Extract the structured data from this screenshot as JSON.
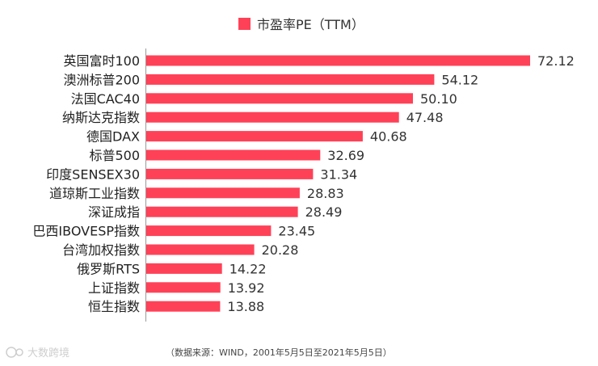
{
  "chart_data": {
    "type": "bar",
    "orientation": "horizontal",
    "legend": {
      "label": "市盈率PE（TTM）",
      "placement": "top-center"
    },
    "categories": [
      "英国富时100",
      "澳洲标普200",
      "法国CAC40",
      "纳斯达克指数",
      "德国DAX",
      "标普500",
      "印度SENSEX30",
      "道琼斯工业指数",
      "深证成指",
      "巴西IBOVESP指数",
      "台湾加权指数",
      "俄罗斯RTS",
      "上证指数",
      "恒生指数"
    ],
    "values": [
      72.12,
      54.12,
      50.1,
      47.48,
      40.68,
      32.69,
      31.34,
      28.83,
      28.49,
      23.45,
      20.28,
      14.22,
      13.92,
      13.88
    ],
    "value_labels": [
      "72.12",
      "54.12",
      "50.10",
      "47.48",
      "40.68",
      "32.69",
      "31.34",
      "28.83",
      "28.49",
      "23.45",
      "20.28",
      "14.22",
      "13.92",
      "13.88"
    ],
    "xlim": [
      0,
      80
    ],
    "grid": false
  },
  "source_note": "（数据来源：WIND，2001年5月5日至2021年5月5日）",
  "watermark": "大数跨境",
  "colors": {
    "bar": "#ff4157",
    "axis": "#9a9a9a",
    "watermark": "#c9c9c9"
  }
}
